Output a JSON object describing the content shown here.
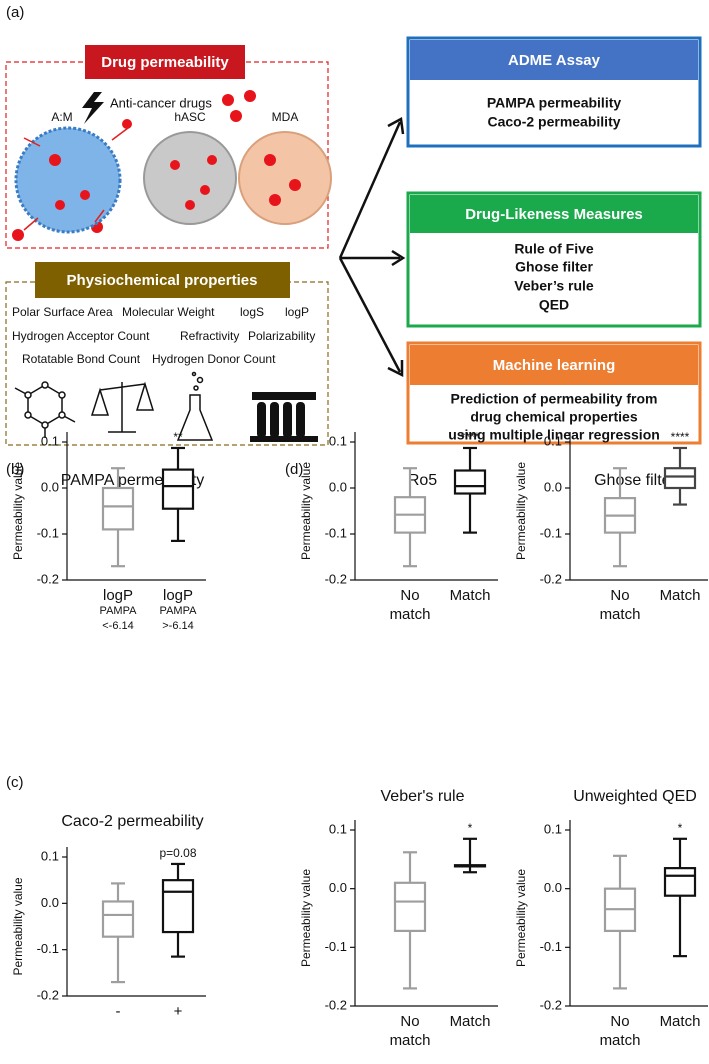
{
  "diagram": {
    "panel_label": "(a)",
    "drug_permeability": {
      "title": "Drug permeability",
      "note": "Anti-cancer drugs",
      "spheroids": [
        "A:M",
        "hASC",
        "MDA"
      ]
    },
    "physiochemical": {
      "title": "Physiochemical properties",
      "properties": [
        "Polar Surface Area",
        "Molecular Weight",
        "logS",
        "logP",
        "Hydrogen Acceptor Count",
        "Refractivity",
        "Polarizability",
        "Rotatable Bond Count",
        "Hydrogen Donor Count"
      ]
    },
    "adme": {
      "title": "ADME Assay",
      "items": [
        "PAMPA permeability",
        "Caco-2 permeability"
      ]
    },
    "drug_likeness": {
      "title": "Drug-Likeness Measures",
      "items": [
        "Rule of Five",
        "Ghose filter",
        "Veber’s rule",
        "QED"
      ]
    },
    "machine_learning": {
      "title": "Machine learning",
      "items": [
        "Prediction of permeability from",
        "drug chemical properties",
        "using multiple linear regression"
      ]
    }
  },
  "panel_labels": [
    "(b)",
    "(c)",
    "(d)"
  ],
  "chart_data": [
    {
      "type": "box",
      "title": "PAMPA permeability",
      "y_label": "Permeability value",
      "categories": [
        [
          "logP",
          "PAMPA",
          "<-6.14"
        ],
        [
          "logP",
          "PAMPA",
          ">-6.14"
        ]
      ],
      "series": [
        {
          "color": "#9e9e9e",
          "values": [
            -0.17,
            -0.09,
            -0.04,
            0.0,
            0.043
          ]
        },
        {
          "color": "#111111",
          "values": [
            -0.115,
            -0.045,
            0.004,
            0.04,
            0.087
          ]
        }
      ],
      "annotation": "**",
      "ylim": [
        -0.2,
        0.1
      ],
      "yticks": [
        -0.2,
        -0.1,
        {
          "value": 0,
          "label": "0.0"
        },
        0.1
      ]
    },
    {
      "type": "box",
      "title": "Ro5",
      "y_label": "Permeability value",
      "categories": [
        [
          "No",
          "match"
        ],
        [
          "Match"
        ]
      ],
      "series": [
        {
          "color": "#9e9e9e",
          "values": [
            -0.17,
            -0.097,
            -0.058,
            -0.02,
            0.043
          ]
        },
        {
          "color": "#111111",
          "values": [
            -0.097,
            -0.012,
            0.004,
            0.038,
            0.087
          ]
        }
      ],
      "annotation": "****",
      "ylim": [
        -0.2,
        0.1
      ],
      "yticks": [
        -0.2,
        -0.1,
        {
          "value": 0,
          "label": "0.0"
        },
        0.1
      ]
    },
    {
      "type": "box",
      "title": "Ghose filter",
      "y_label": "Permeability value",
      "categories": [
        [
          "No",
          "match"
        ],
        [
          "Match"
        ]
      ],
      "series": [
        {
          "color": "#9e9e9e",
          "values": [
            -0.17,
            -0.097,
            -0.06,
            -0.022,
            0.043
          ]
        },
        {
          "color": "#444444",
          "values": [
            -0.036,
            0.0,
            0.025,
            0.043,
            0.087
          ]
        }
      ],
      "annotation": "****",
      "ylim": [
        -0.2,
        0.1
      ],
      "yticks": [
        -0.2,
        -0.1,
        {
          "value": 0,
          "label": "0.0"
        },
        0.1
      ]
    },
    {
      "type": "box",
      "title": "Caco-2 permeability",
      "y_label": "Permeability value",
      "categories": [
        [
          "-"
        ],
        [
          "+"
        ]
      ],
      "series": [
        {
          "color": "#9e9e9e",
          "values": [
            -0.17,
            -0.072,
            -0.025,
            0.004,
            0.043
          ]
        },
        {
          "color": "#111111",
          "values": [
            -0.115,
            -0.062,
            0.025,
            0.05,
            0.085
          ]
        }
      ],
      "annotation": "p=0.08",
      "ylim": [
        -0.2,
        0.1
      ],
      "yticks": [
        -0.2,
        -0.1,
        {
          "value": 0,
          "label": "0.0"
        },
        0.1
      ]
    },
    {
      "type": "box",
      "title": "Veber's rule",
      "y_label": "Permeability value",
      "categories": [
        [
          "No",
          "match"
        ],
        [
          "Match"
        ]
      ],
      "series": [
        {
          "color": "#9e9e9e",
          "values": [
            -0.17,
            -0.072,
            -0.022,
            0.01,
            0.062
          ]
        },
        {
          "color": "#111111",
          "values": [
            0.028,
            0.038,
            0.038,
            0.04,
            0.085
          ]
        }
      ],
      "annotation": "*",
      "ylim": [
        -0.2,
        0.1
      ],
      "yticks": [
        -0.2,
        -0.1,
        {
          "value": 0,
          "label": "0.0"
        },
        0.1
      ]
    },
    {
      "type": "box",
      "title": "Unweighted QED",
      "y_label": "Permeability value",
      "categories": [
        [
          "No",
          "match"
        ],
        [
          "Match"
        ]
      ],
      "series": [
        {
          "color": "#9e9e9e",
          "values": [
            -0.17,
            -0.072,
            -0.035,
            0.0,
            0.056
          ]
        },
        {
          "color": "#111111",
          "values": [
            -0.115,
            -0.012,
            0.022,
            0.035,
            0.085
          ]
        }
      ],
      "annotation": "*",
      "ylim": [
        -0.2,
        0.1
      ],
      "yticks": [
        -0.2,
        -0.1,
        {
          "value": 0,
          "label": "0.0"
        },
        0.1
      ]
    }
  ]
}
